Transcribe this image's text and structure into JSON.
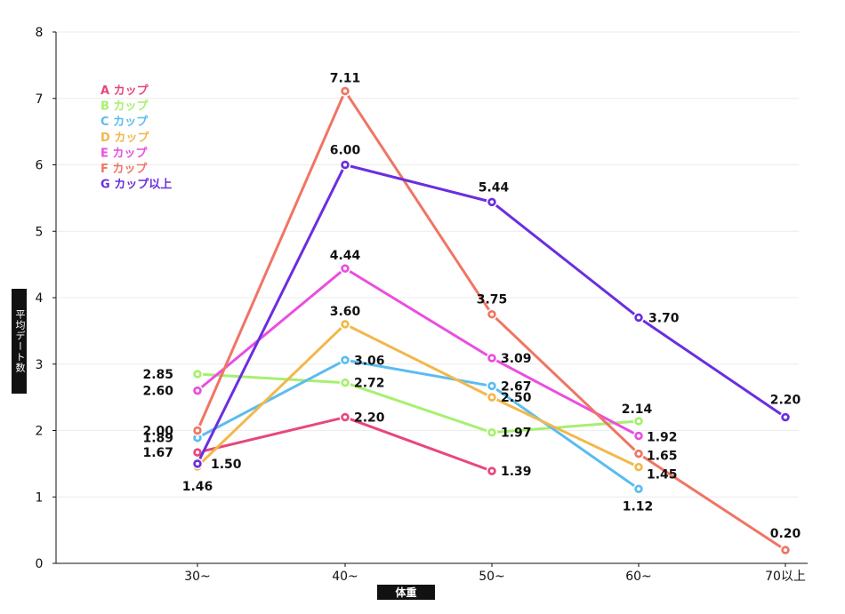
{
  "chart_data": {
    "type": "line",
    "xlabel": "体重",
    "ylabel": "平均デート数",
    "categories": [
      "30~",
      "40~",
      "50~",
      "60~",
      "70以上"
    ],
    "ylim": [
      0,
      8
    ],
    "yticks": [
      0,
      1,
      2,
      3,
      4,
      5,
      6,
      7,
      8
    ],
    "grid": true,
    "legend_position": "top-left",
    "series": [
      {
        "name": "A カップ",
        "color": "#e8467c",
        "values": [
          1.67,
          2.2,
          1.39,
          null,
          null
        ],
        "labels": [
          "1.67",
          "2.20",
          "1.39",
          null,
          null
        ]
      },
      {
        "name": "B カップ",
        "color": "#a6f06e",
        "values": [
          2.85,
          2.72,
          1.97,
          2.14,
          null
        ],
        "labels": [
          "2.85",
          "2.72",
          "1.97",
          "2.14",
          null
        ]
      },
      {
        "name": "C カップ",
        "color": "#5bbcf0",
        "values": [
          1.89,
          3.06,
          2.67,
          1.12,
          null
        ],
        "labels": [
          "1.89",
          "3.06",
          "2.67",
          "1.12",
          null
        ]
      },
      {
        "name": "D カップ",
        "color": "#f2b84b",
        "values": [
          1.46,
          3.6,
          2.5,
          1.45,
          null
        ],
        "labels": [
          "1.46",
          "3.60",
          "2.50",
          "1.45",
          null
        ]
      },
      {
        "name": "E カップ",
        "color": "#ea4ee0",
        "values": [
          2.6,
          4.44,
          3.09,
          1.92,
          null
        ],
        "labels": [
          "2.60",
          "4.44",
          "3.09",
          "1.92",
          null
        ]
      },
      {
        "name": "F カップ",
        "color": "#f07563",
        "values": [
          2.0,
          7.11,
          3.75,
          1.65,
          0.2
        ],
        "labels": [
          "2.00",
          "7.11",
          "3.75",
          "1.65",
          "0.20"
        ]
      },
      {
        "name": "G カップ以上",
        "color": "#6a2ee0",
        "values": [
          1.5,
          6.0,
          5.44,
          3.7,
          2.2
        ],
        "labels": [
          "1.50",
          "6.00",
          "5.44",
          "3.70",
          "2.20"
        ]
      }
    ]
  }
}
